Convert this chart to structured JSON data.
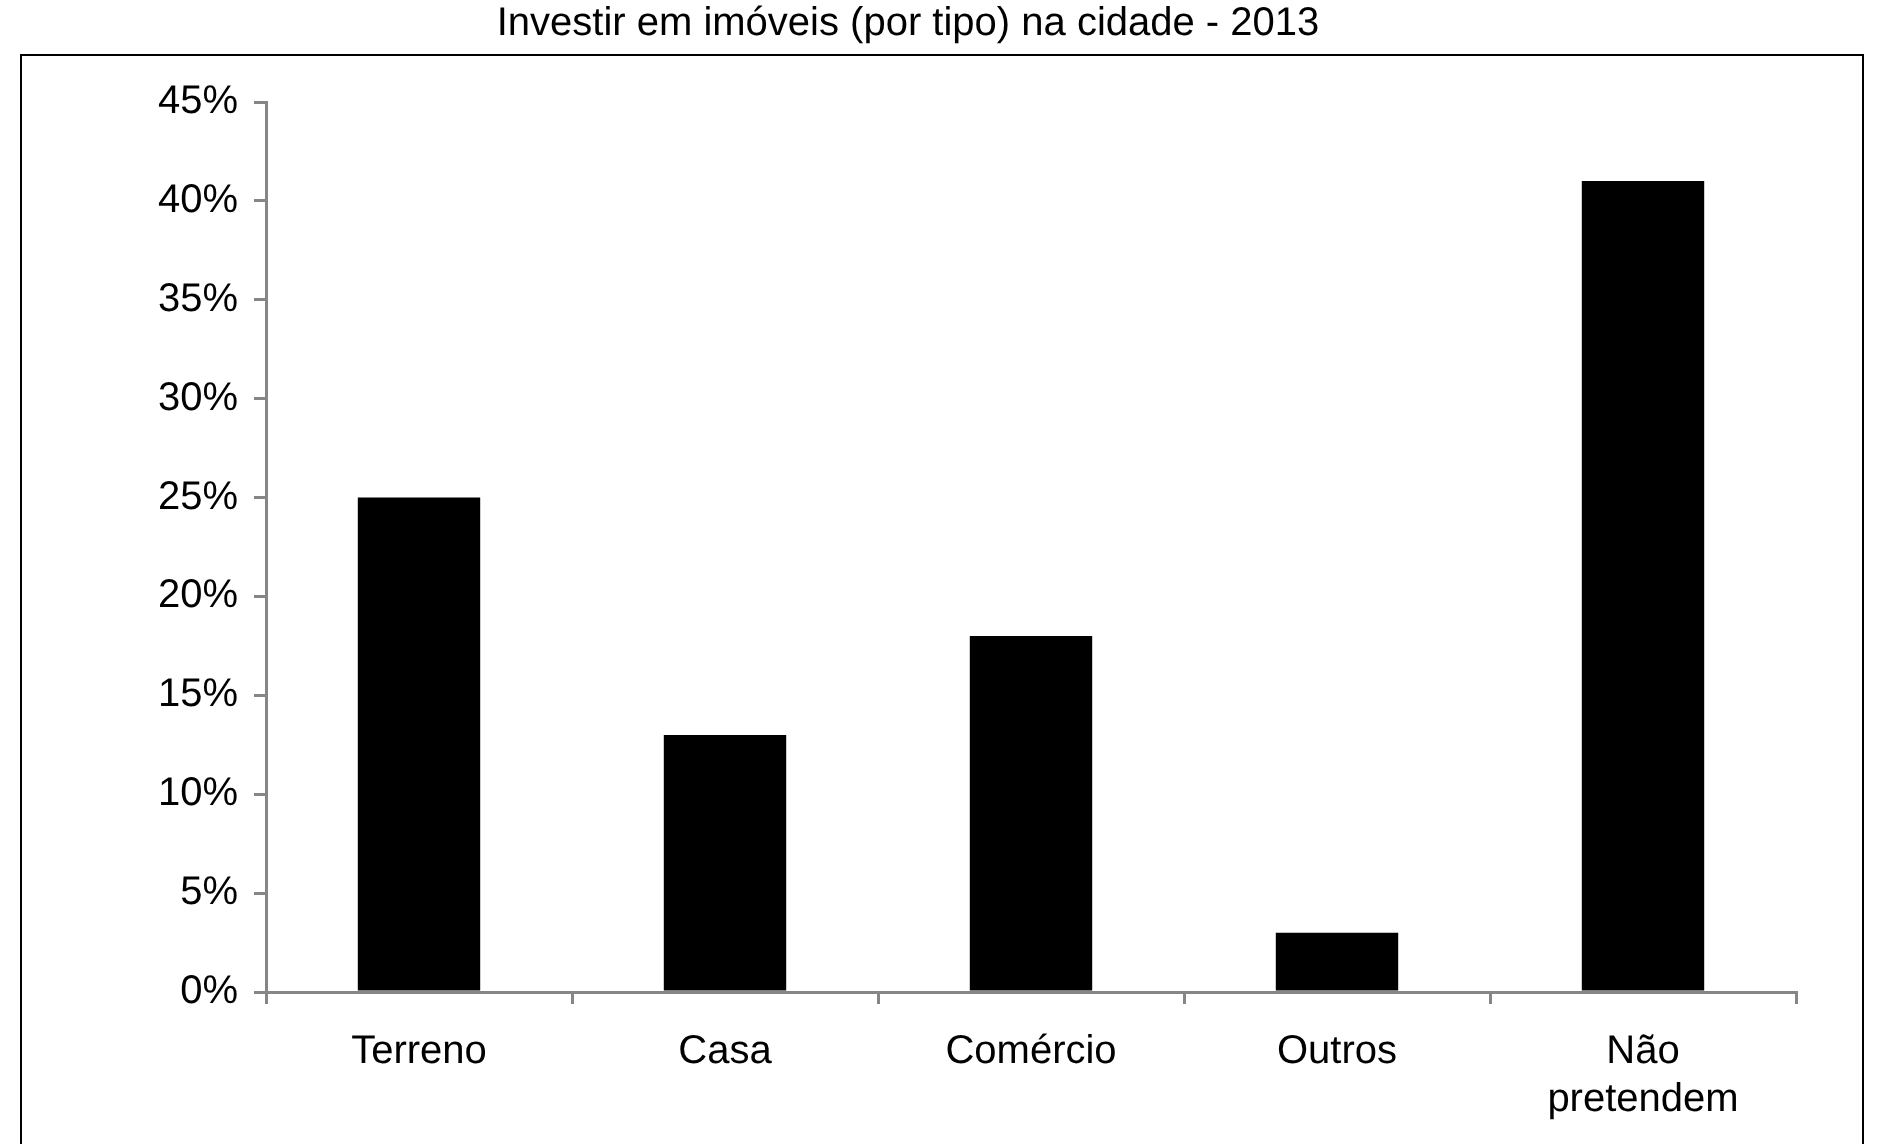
{
  "chart_data": {
    "type": "bar",
    "title": "Investir em imóveis (por tipo) na cidade - 2013",
    "categories": [
      "Terreno",
      "Casa",
      "Comércio",
      "Outros",
      "Não pretendem"
    ],
    "values": [
      25,
      13,
      18,
      3,
      41
    ],
    "color": "#000000",
    "ylim": [
      0,
      45
    ],
    "yticks": [
      {
        "value": 0,
        "label": "0%"
      },
      {
        "value": 5,
        "label": "5%"
      },
      {
        "value": 10,
        "label": "10%"
      },
      {
        "value": 15,
        "label": "15%"
      },
      {
        "value": 20,
        "label": "20%"
      },
      {
        "value": 25,
        "label": "25%"
      },
      {
        "value": 30,
        "label": "30%"
      },
      {
        "value": 35,
        "label": "35%"
      },
      {
        "value": 40,
        "label": "40%"
      },
      {
        "value": 45,
        "label": "45%"
      }
    ],
    "grid": false,
    "legend": false
  }
}
